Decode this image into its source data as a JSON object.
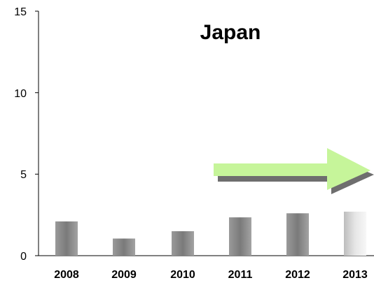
{
  "chart_data": {
    "type": "bar",
    "title": "Japan",
    "categories": [
      "2008",
      "2009",
      "2010",
      "2011",
      "2012",
      "2013"
    ],
    "values": [
      2.1,
      1.05,
      1.5,
      2.35,
      2.6,
      2.7
    ],
    "ylim": [
      0,
      15
    ],
    "yticks": [
      "0",
      "5",
      "10",
      "15"
    ],
    "xlabel": "",
    "ylabel": "",
    "grid": false,
    "annotations": [
      "arrow pointing right toward 2013"
    ],
    "colors": {
      "bar_actual": "#8a8a8a",
      "bar_forecast": "#d9d9d9",
      "arrow_fill": "#c6f59a",
      "arrow_shadow": "#6e6e6e"
    }
  }
}
